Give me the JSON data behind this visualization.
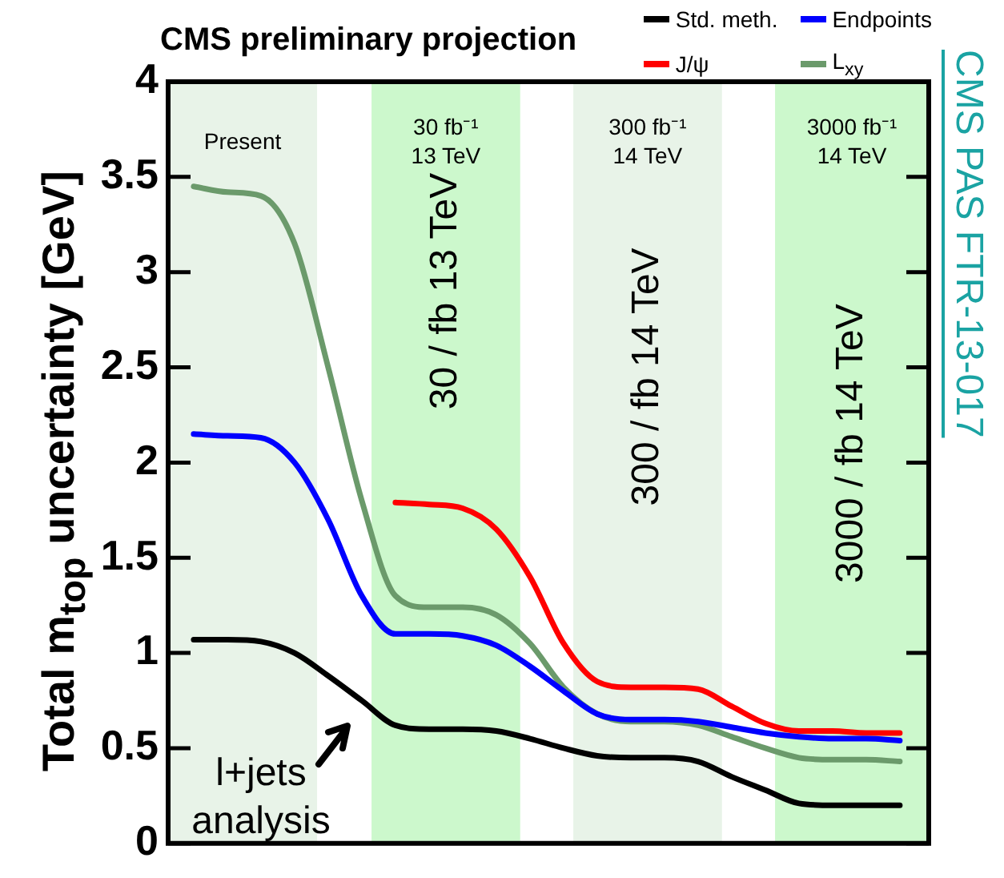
{
  "chart_data": {
    "type": "line",
    "title": "CMS preliminary projection",
    "ylabel": "Total m$_{top}$ uncertainty [GeV]",
    "categories": [
      null,
      null,
      null,
      null,
      null,
      null,
      null,
      null,
      null,
      null,
      null,
      null,
      null,
      null,
      null,
      null,
      null,
      null,
      null,
      null,
      null,
      null
    ],
    "series": [
      {
        "name": "Std. meth.",
        "color": "#000000",
        "values": [
          1.07,
          1.07,
          1.06,
          1.0,
          0.88,
          0.75,
          0.62,
          0.6,
          0.6,
          0.59,
          0.55,
          0.5,
          0.46,
          0.45,
          0.45,
          0.43,
          0.35,
          0.28,
          0.21,
          0.2,
          0.2,
          0.2
        ]
      },
      {
        "name": "Endpoints",
        "color": "#0000ff",
        "values": [
          2.15,
          2.14,
          2.13,
          2.0,
          1.7,
          1.3,
          1.1,
          1.1,
          1.09,
          1.04,
          0.93,
          0.8,
          0.68,
          0.65,
          0.65,
          0.64,
          0.61,
          0.58,
          0.56,
          0.55,
          0.55,
          0.54
        ]
      },
      {
        "name": "J/ψ",
        "color": "#ff0000",
        "values": [
          null,
          null,
          null,
          null,
          null,
          null,
          1.79,
          1.78,
          1.76,
          1.65,
          1.4,
          1.05,
          0.85,
          0.82,
          0.82,
          0.81,
          0.72,
          0.63,
          0.59,
          0.59,
          0.58,
          0.58
        ]
      },
      {
        "name": "L$_{xy}$",
        "color": "#6b9a6b",
        "values": [
          3.45,
          3.42,
          3.4,
          3.15,
          2.5,
          1.8,
          1.3,
          1.24,
          1.24,
          1.2,
          1.05,
          0.82,
          0.68,
          0.64,
          0.64,
          0.62,
          0.56,
          0.5,
          0.45,
          0.44,
          0.44,
          0.43
        ]
      }
    ],
    "annotations": [
      "30 / fb 13 TeV",
      "300 / fb 14 TeV",
      "3000 / fb 14 TeV",
      "l+jets\nanalysis",
      "CMS PAS FTR-13-017",
      "Present",
      "30 fb⁻¹\n13 TeV",
      "300 fb⁻¹\n14 TeV",
      "3000 fb⁻¹\n14 TeV"
    ],
    "ylim": [
      0,
      4
    ],
    "yticks": [
      0,
      0.5,
      1,
      1.5,
      2,
      2.5,
      3,
      3.5,
      4
    ],
    "tick_labels": "y",
    "grid": false,
    "legend": "top right",
    "marker": "none",
    "line_style": "solid"
  }
}
